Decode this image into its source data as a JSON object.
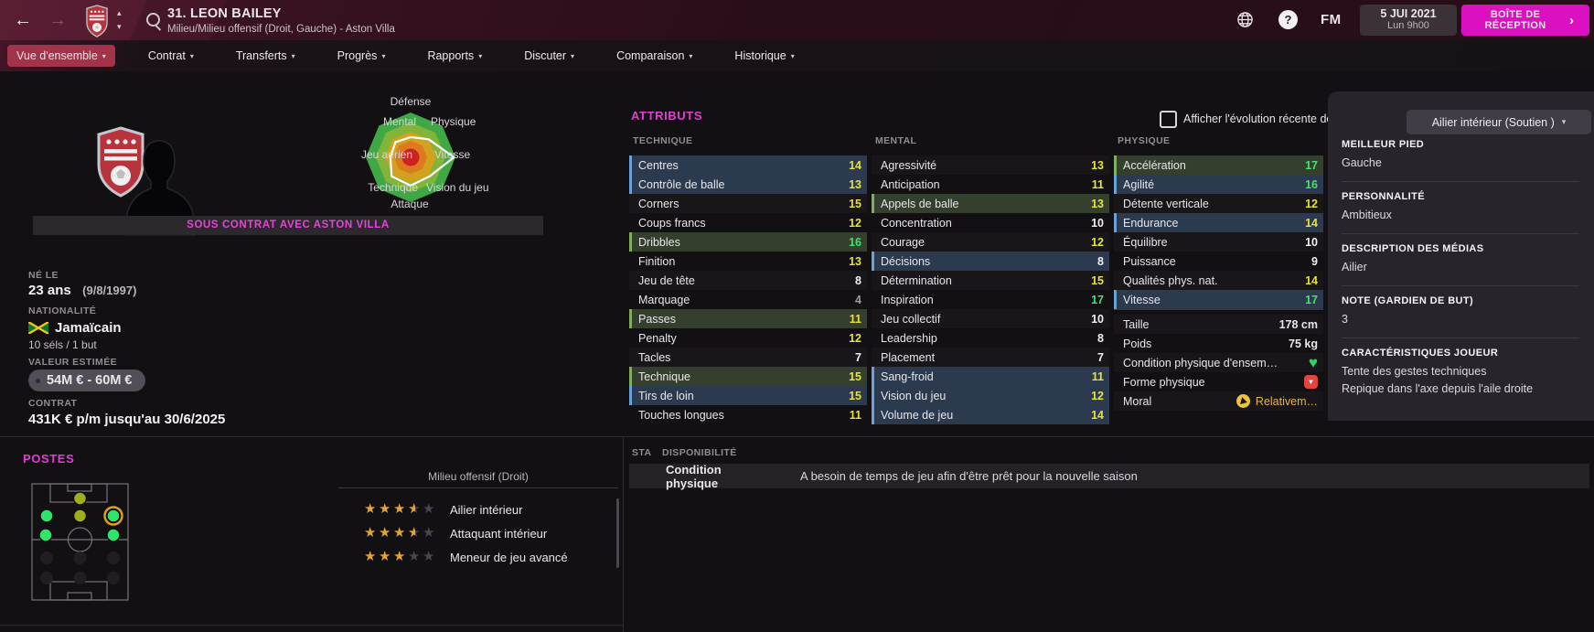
{
  "window": {
    "title": "31. LEON BAILEY",
    "subtitle": "Milieu/Milieu offensif (Droit, Gauche) - Aston Villa",
    "date": "5 JUI 2021",
    "time": "Lun 9h00",
    "fm_logo": "FM",
    "inbox_line1": "BOÎTE DE",
    "inbox_line2": "RÉCEPTION"
  },
  "nav": {
    "tabs": [
      {
        "label": "Vue d'ensemble",
        "active": true
      },
      {
        "label": "Contrat",
        "active": false
      },
      {
        "label": "Transferts",
        "active": false
      },
      {
        "label": "Progrès",
        "active": false
      },
      {
        "label": "Rapports",
        "active": false
      },
      {
        "label": "Discuter",
        "active": false
      },
      {
        "label": "Comparaison",
        "active": false
      },
      {
        "label": "Historique",
        "active": false
      }
    ]
  },
  "profile": {
    "contract_banner": "SOUS CONTRAT AVEC ASTON VILLA",
    "born_label": "NÉ LE",
    "born_value": "23 ans",
    "born_date": "(9/8/1997)",
    "nationality_label": "NATIONALITÉ",
    "nationality": "Jamaïcain",
    "caps": "10 séls / 1 but",
    "value_label": "VALEUR ESTIMÉE",
    "value": "54M € - 60M €",
    "contract_label": "CONTRAT",
    "contract": "431K € p/m jusqu'au 30/6/2025"
  },
  "radar": {
    "labels": [
      "Défense",
      "Physique",
      "Vitesse",
      "Vision du jeu",
      "Attaque",
      "Technique",
      "Jeu aérien",
      "Mental"
    ],
    "values": [
      0.45,
      0.57,
      0.97,
      0.6,
      0.63,
      0.6,
      0.45,
      0.48
    ],
    "ring_colors": [
      "#3fa845",
      "#83b43a",
      "#d2a11d",
      "#dd791e"
    ],
    "center_color": "#ce2121"
  },
  "attributes": {
    "header": "ATTRIBUTS",
    "show_evolution_label": "Afficher l'évolution récente des attributs",
    "role_dropdown": "Ailier intérieur (Soutien )",
    "columns": [
      {
        "title": "TECHNIQUE",
        "rows": [
          {
            "label": "Centres",
            "value": 14,
            "hl": "blue"
          },
          {
            "label": "Contrôle de balle",
            "value": 13,
            "hl": "blue"
          },
          {
            "label": "Corners",
            "value": 15,
            "hl": ""
          },
          {
            "label": "Coups francs",
            "value": 12,
            "hl": ""
          },
          {
            "label": "Dribbles",
            "value": 16,
            "hl": "green"
          },
          {
            "label": "Finition",
            "value": 13,
            "hl": ""
          },
          {
            "label": "Jeu de tête",
            "value": 8,
            "hl": ""
          },
          {
            "label": "Marquage",
            "value": 4,
            "hl": ""
          },
          {
            "label": "Passes",
            "value": 11,
            "hl": "green"
          },
          {
            "label": "Penalty",
            "value": 12,
            "hl": ""
          },
          {
            "label": "Tacles",
            "value": 7,
            "hl": ""
          },
          {
            "label": "Technique",
            "value": 15,
            "hl": "green"
          },
          {
            "label": "Tirs de loin",
            "value": 15,
            "hl": "blue"
          },
          {
            "label": "Touches longues",
            "value": 11,
            "hl": ""
          }
        ]
      },
      {
        "title": "MENTAL",
        "rows": [
          {
            "label": "Agressivité",
            "value": 13,
            "hl": ""
          },
          {
            "label": "Anticipation",
            "value": 11,
            "hl": ""
          },
          {
            "label": "Appels de balle",
            "value": 13,
            "hl": "green"
          },
          {
            "label": "Concentration",
            "value": 10,
            "hl": ""
          },
          {
            "label": "Courage",
            "value": 12,
            "hl": ""
          },
          {
            "label": "Décisions",
            "value": 8,
            "hl": "blue"
          },
          {
            "label": "Détermination",
            "value": 15,
            "hl": ""
          },
          {
            "label": "Inspiration",
            "value": 17,
            "hl": ""
          },
          {
            "label": "Jeu collectif",
            "value": 10,
            "hl": ""
          },
          {
            "label": "Leadership",
            "value": 8,
            "hl": ""
          },
          {
            "label": "Placement",
            "value": 7,
            "hl": ""
          },
          {
            "label": "Sang-froid",
            "value": 11,
            "hl": "blue"
          },
          {
            "label": "Vision du jeu",
            "value": 12,
            "hl": "blue"
          },
          {
            "label": "Volume de jeu",
            "value": 14,
            "hl": "blue"
          }
        ]
      },
      {
        "title": "PHYSIQUE",
        "rows": [
          {
            "label": "Accélération",
            "value": 17,
            "hl": "green"
          },
          {
            "label": "Agilité",
            "value": 16,
            "hl": "blue"
          },
          {
            "label": "Détente verticale",
            "value": 12,
            "hl": ""
          },
          {
            "label": "Endurance",
            "value": 14,
            "hl": "blue"
          },
          {
            "label": "Équilibre",
            "value": 10,
            "hl": ""
          },
          {
            "label": "Puissance",
            "value": 9,
            "hl": ""
          },
          {
            "label": "Qualités phys. nat.",
            "value": 14,
            "hl": ""
          },
          {
            "label": "Vitesse",
            "value": 17,
            "hl": "blue"
          }
        ]
      }
    ],
    "physical_info": [
      {
        "label": "Taille",
        "value": "178 cm"
      },
      {
        "label": "Poids",
        "value": "75 kg"
      },
      {
        "label": "Condition physique d'ensem…",
        "icon": "heart"
      },
      {
        "label": "Forme physique",
        "icon": "thumb-down"
      },
      {
        "label": "Moral",
        "icon": "moral-arrow",
        "value": "Relativem…"
      }
    ]
  },
  "sidebar": {
    "sections": [
      {
        "title": "MEILLEUR PIED",
        "lines": [
          "Gauche"
        ]
      },
      {
        "title": "PERSONNALITÉ",
        "lines": [
          "Ambitieux"
        ]
      },
      {
        "title": "DESCRIPTION DES MÉDIAS",
        "lines": [
          "Ailier"
        ]
      },
      {
        "title": "NOTE (GARDIEN DE BUT)",
        "lines": [
          "3"
        ]
      },
      {
        "title": "CARACTÉRISTIQUES JOUEUR",
        "lines": [
          "Tente des gestes techniques",
          "Repique dans l'axe depuis l'aile droite"
        ]
      }
    ]
  },
  "positions": {
    "header": "POSTES",
    "selected_position": "Milieu offensif (Droit)",
    "roles": [
      {
        "stars": 3.5,
        "label": "Ailier intérieur"
      },
      {
        "stars": 3.5,
        "label": "Attaquant intérieur"
      },
      {
        "stars": 3,
        "label": "Meneur de jeu avancé"
      }
    ],
    "pitch_positions": [
      {
        "pos": "ST",
        "level": "competent",
        "selected": false
      },
      {
        "pos": "AML",
        "level": "natural",
        "selected": false
      },
      {
        "pos": "AMC",
        "level": "competent",
        "selected": false
      },
      {
        "pos": "AMR",
        "level": "natural",
        "selected": true
      },
      {
        "pos": "ML",
        "level": "natural",
        "selected": false
      },
      {
        "pos": "MR",
        "level": "natural",
        "selected": false
      }
    ]
  },
  "availability": {
    "col1": "STA",
    "col2": "DISPONIBILITÉ",
    "row_label": "Condition physique",
    "row_text": "A besoin de temps de jeu afin d'être prêt pour la nouvelle saison"
  },
  "colors": {
    "accent_magenta": "#e13fd2",
    "claret_header": "#451628",
    "active_tab": "#a23349",
    "inbox_button": "#db10c0",
    "value_high": "#46e26a",
    "value_mid": "#e7e23c",
    "value_low": "#f2f0f2",
    "value_verylow": "#9e9ca3",
    "hl_blue_bg": "#2b3a4e",
    "hl_green_bg": "#343f2d",
    "star_gold": "#e2a43b",
    "pos_natural": "#2ee56b",
    "pos_competent": "#9fae1e",
    "moral_yellow": "#edc23f"
  }
}
